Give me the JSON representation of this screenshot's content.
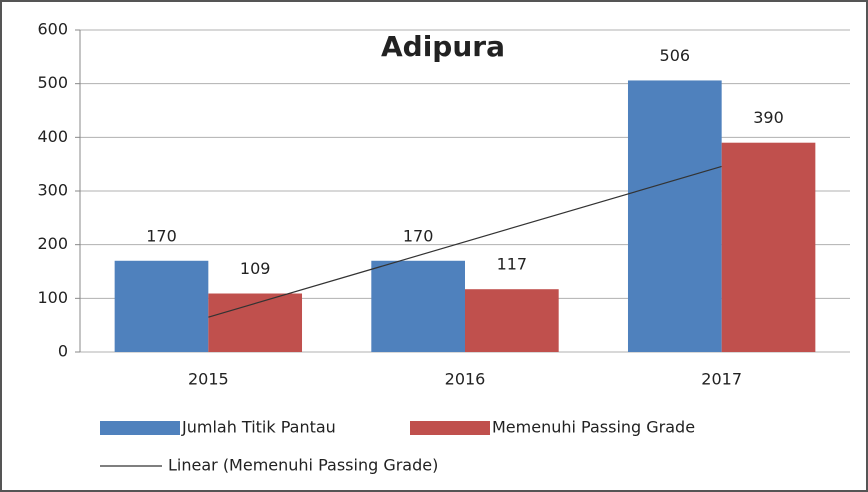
{
  "chart_data": {
    "type": "bar",
    "title": "Adipura",
    "categories": [
      "2015",
      "2016",
      "2017"
    ],
    "series": [
      {
        "name": "Jumlah Titik Pantau",
        "color": "#4f81bd",
        "values": [
          170,
          170,
          506
        ]
      },
      {
        "name": "Memenuhi Passing Grade",
        "color": "#c0504d",
        "values": [
          109,
          117,
          390
        ]
      }
    ],
    "trendline": {
      "name": "Linear (Memenuhi Passing Grade)",
      "color": "#333333"
    },
    "ylim": [
      0,
      600
    ],
    "yticks": [
      0,
      100,
      200,
      300,
      400,
      500,
      600
    ],
    "grid": true
  }
}
